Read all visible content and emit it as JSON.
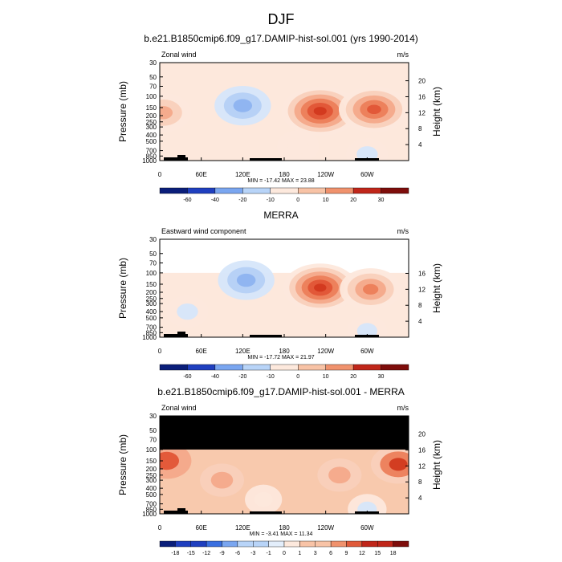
{
  "figure_title": "DJF",
  "chart_data": [
    {
      "type": "heatmap",
      "title": "b.e21.B1850cmip6.f09_g17.DAMIP-hist-sol.001 (yrs 1990-2014)",
      "left_label": "Zonal wind",
      "units": "m/s",
      "ylabel": "Pressure (mb)",
      "ylabel_right": "Height (km)",
      "x_ticks": [
        "0",
        "60E",
        "120E",
        "180",
        "120W",
        "60W"
      ],
      "y_ticks": [
        "30",
        "50",
        "70",
        "100",
        "150",
        "200",
        "250",
        "300",
        "400",
        "500",
        "700",
        "850",
        "1000"
      ],
      "height_ticks": [
        "4",
        "8",
        "12",
        "16",
        "20"
      ],
      "stats": "MIN = -17.42  MAX = 23.88",
      "colorbar_labels": [
        "-60",
        "-40",
        "-20",
        "-10",
        "0",
        "10",
        "20",
        "30"
      ],
      "ylim_mb": [
        1000,
        30
      ],
      "xlim_deg": [
        0,
        360
      ],
      "features": [
        {
          "lon": 120,
          "p": 140,
          "value": -12
        },
        {
          "lon": 232,
          "p": 170,
          "value": 23.9
        },
        {
          "lon": 310,
          "p": 160,
          "value": 20
        },
        {
          "lon": 5,
          "p": 180,
          "value": 12
        },
        {
          "lon": 200,
          "p": 600,
          "value": 4
        },
        {
          "lon": 300,
          "p": 800,
          "value": -4
        }
      ]
    },
    {
      "type": "heatmap",
      "title": "MERRA",
      "left_label": "Eastward wind component",
      "units": "m/s",
      "ylabel": "Pressure (mb)",
      "ylabel_right": "Height (km)",
      "x_ticks": [
        "0",
        "60E",
        "120E",
        "180",
        "120W",
        "60W"
      ],
      "y_ticks": [
        "30",
        "50",
        "70",
        "100",
        "150",
        "200",
        "250",
        "300",
        "400",
        "500",
        "700",
        "850",
        "1000"
      ],
      "height_ticks": [
        "4",
        "8",
        "12",
        "16"
      ],
      "stats": "MIN = -17.72  MAX = 21.97",
      "colorbar_labels": [
        "-60",
        "-40",
        "-20",
        "-10",
        "0",
        "10",
        "20",
        "30"
      ],
      "ylim_mb": [
        1000,
        30
      ],
      "data_top_mb": 100,
      "features": [
        {
          "lon": 125,
          "p": 130,
          "value": -12
        },
        {
          "lon": 232,
          "p": 170,
          "value": 22
        },
        {
          "lon": 305,
          "p": 180,
          "value": 15
        },
        {
          "lon": 40,
          "p": 400,
          "value": -4
        },
        {
          "lon": 300,
          "p": 800,
          "value": -3
        }
      ]
    },
    {
      "type": "heatmap",
      "title": "b.e21.B1850cmip6.f09_g17.DAMIP-hist-sol.001 - MERRA",
      "left_label": "Zonal wind",
      "units": "m/s",
      "ylabel": "Pressure (mb)",
      "ylabel_right": "Height (km)",
      "x_ticks": [
        "0",
        "60E",
        "120E",
        "180",
        "120W",
        "60W"
      ],
      "y_ticks": [
        "30",
        "50",
        "70",
        "100",
        "150",
        "200",
        "250",
        "300",
        "400",
        "500",
        "700",
        "850",
        "1000"
      ],
      "height_ticks": [
        "4",
        "8",
        "12",
        "16",
        "20"
      ],
      "stats": "MIN = -3.41  MAX = 11.34",
      "colorbar_labels": [
        "-18",
        "-15",
        "-12",
        "-9",
        "-6",
        "-3",
        "-1",
        "0",
        "1",
        "3",
        "6",
        "9",
        "12",
        "15",
        "18"
      ],
      "ylim_mb": [
        1000,
        30
      ],
      "no_data_above_mb": 100,
      "features": [
        {
          "lon": 345,
          "p": 170,
          "value": 11
        },
        {
          "lon": 10,
          "p": 150,
          "value": 8
        },
        {
          "lon": 90,
          "p": 300,
          "value": 5
        },
        {
          "lon": 260,
          "p": 250,
          "value": 5
        },
        {
          "lon": 150,
          "p": 600,
          "value": -1
        },
        {
          "lon": 300,
          "p": 850,
          "value": -2
        }
      ]
    }
  ]
}
